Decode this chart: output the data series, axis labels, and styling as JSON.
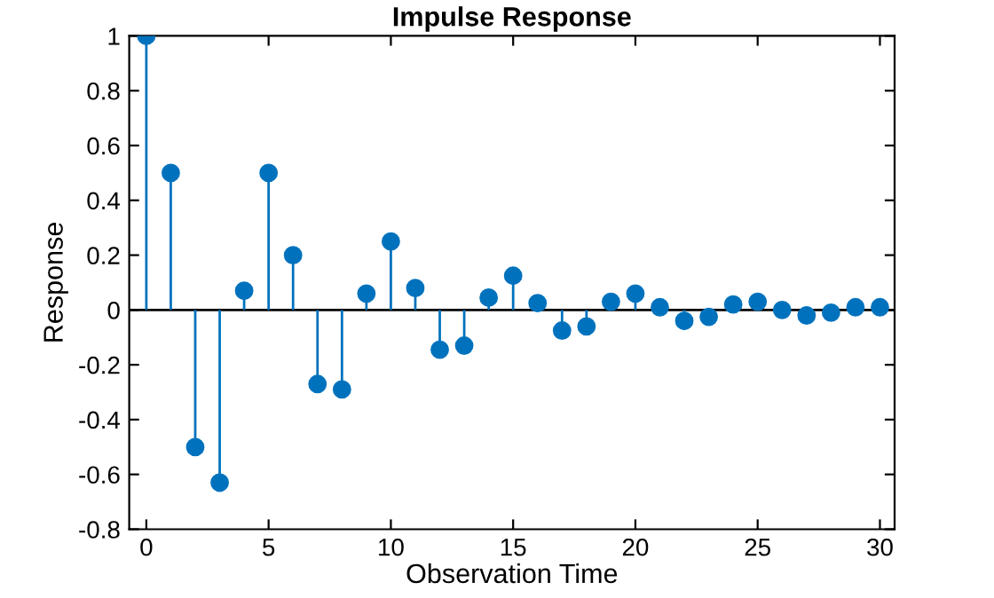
{
  "chart_data": {
    "type": "lollipop",
    "title": "Impulse Response",
    "xlabel": "Observation Time",
    "ylabel": "Response",
    "x": [
      0,
      1,
      2,
      3,
      4,
      5,
      6,
      7,
      8,
      9,
      10,
      11,
      12,
      13,
      14,
      15,
      16,
      17,
      18,
      19,
      20,
      21,
      22,
      23,
      24,
      25,
      26,
      27,
      28,
      29,
      30
    ],
    "values": [
      1,
      0.5,
      -0.5,
      -0.63,
      0.07,
      0.5,
      0.2,
      -0.27,
      -0.29,
      0.06,
      0.25,
      0.08,
      -0.145,
      -0.13,
      0.045,
      0.125,
      0.025,
      -0.075,
      -0.06,
      0.03,
      0.06,
      0.01,
      -0.04,
      -0.025,
      0.02,
      0.03,
      0,
      -0.02,
      -0.01,
      0.01,
      0.01
    ],
    "color": "#0072bd",
    "marker": "circle",
    "grid": false,
    "legend": false,
    "ref_lines": [
      {
        "axis": "y",
        "value": 0,
        "color": "#000000"
      }
    ],
    "xlim": [
      -0.7,
      30.6
    ],
    "xticks": [
      0,
      5,
      10,
      15,
      20,
      25,
      30
    ],
    "ylim": [
      -0.8,
      1
    ],
    "yticks": [
      -0.8,
      -0.6,
      -0.4,
      -0.2,
      0,
      0.2,
      0.4,
      0.6,
      0.8,
      1
    ]
  }
}
